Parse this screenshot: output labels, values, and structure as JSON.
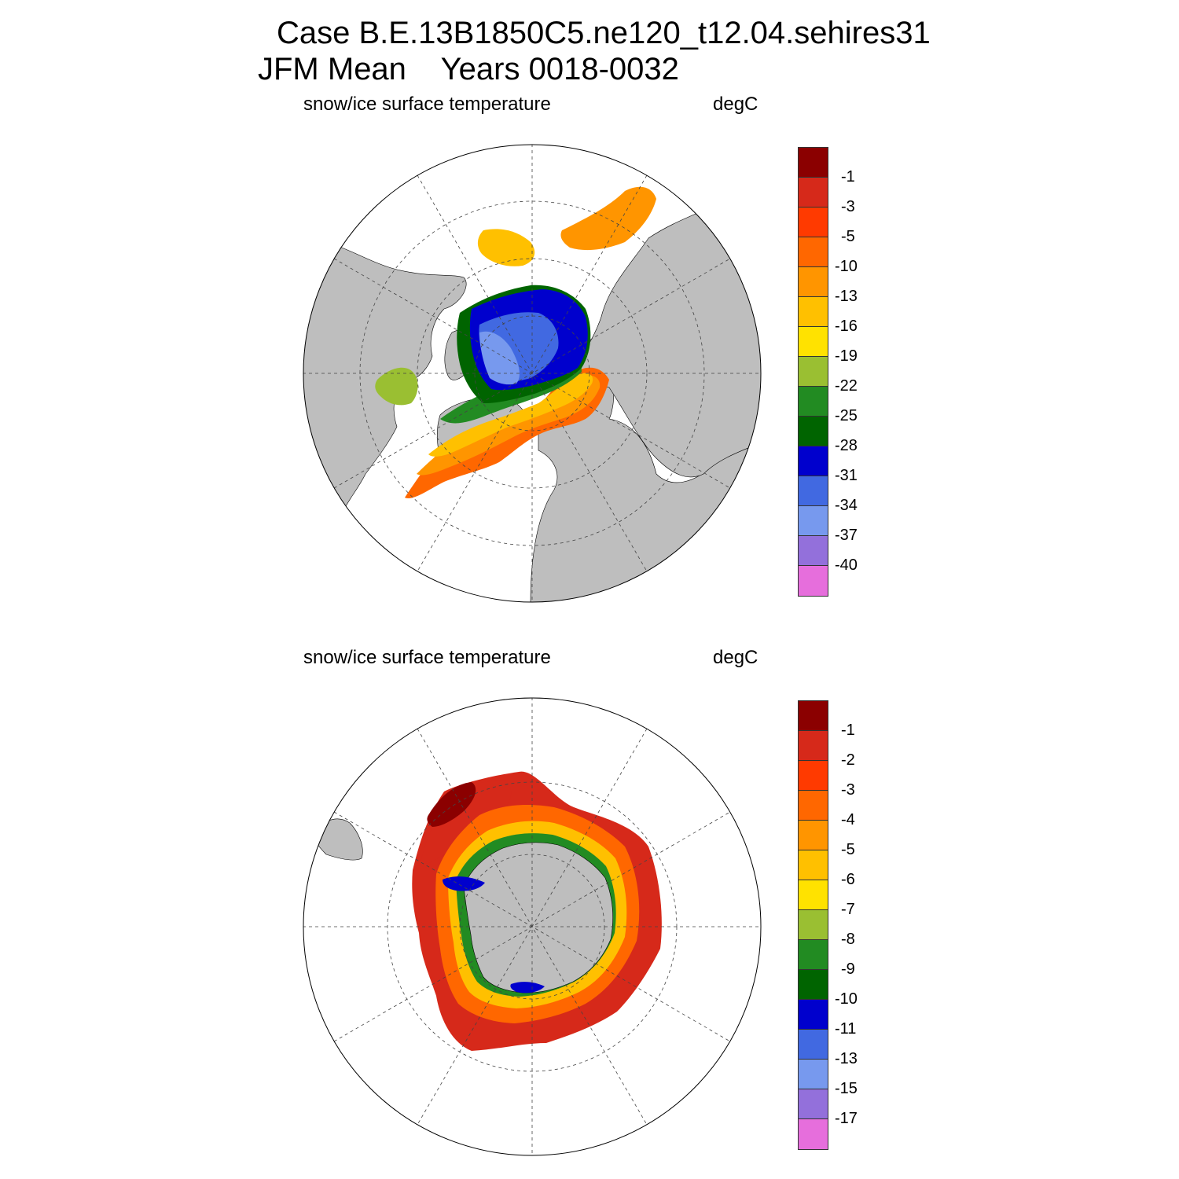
{
  "title": {
    "line1": "Case B.E.13B1850C5.ne120_t12.04.sehires31",
    "line2": "JFM Mean    Years 0018-0032"
  },
  "panels": [
    {
      "id": "north",
      "subtitle": "snow/ice surface temperature",
      "units": "degC",
      "hemisphere": "north",
      "colorbar_labels": [
        "-1",
        "-3",
        "-5",
        "-10",
        "-13",
        "-16",
        "-19",
        "-22",
        "-25",
        "-28",
        "-31",
        "-34",
        "-37",
        "-40"
      ],
      "colors": [
        "#8B0000",
        "#D6291A",
        "#FF3A00",
        "#FF6700",
        "#FF9500",
        "#FFC000",
        "#FFE200",
        "#9ABF32",
        "#228B22",
        "#006400",
        "#0000CD",
        "#4169E1",
        "#7799EE",
        "#9370DB",
        "#E66EDC"
      ]
    },
    {
      "id": "south",
      "subtitle": "snow/ice surface temperature",
      "units": "degC",
      "hemisphere": "south",
      "colorbar_labels": [
        "-1",
        "-2",
        "-3",
        "-4",
        "-5",
        "-6",
        "-7",
        "-8",
        "-9",
        "-10",
        "-11",
        "-13",
        "-15",
        "-17"
      ],
      "colors": [
        "#8B0000",
        "#D6291A",
        "#FF3A00",
        "#FF6700",
        "#FF9500",
        "#FFC000",
        "#FFE200",
        "#9ABF32",
        "#228B22",
        "#006400",
        "#0000CD",
        "#4169E1",
        "#7799EE",
        "#9370DB",
        "#E66EDC"
      ]
    }
  ],
  "map_colors": {
    "land": "#BEBEBE",
    "ocean": "#FFFFFF"
  }
}
